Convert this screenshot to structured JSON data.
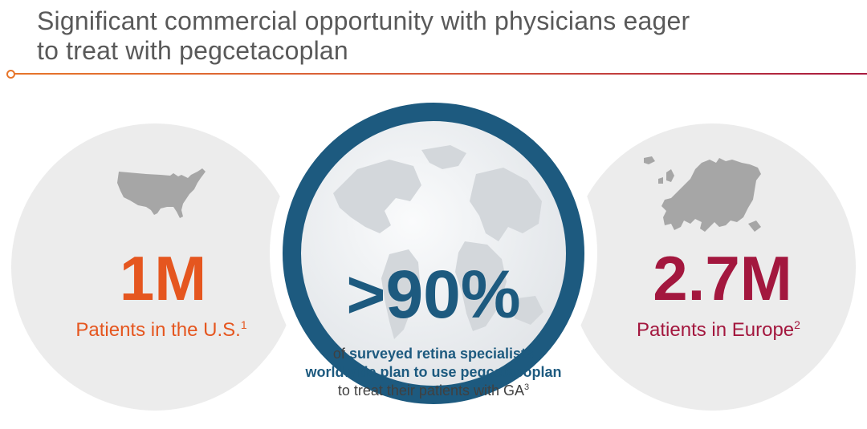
{
  "slide": {
    "title_line1": "Significant commercial opportunity with physicians eager",
    "title_line2": "to treat with pegcetacoplan"
  },
  "us": {
    "number": "1M",
    "caption": "Patients in the U.S.",
    "footnote": "1",
    "icon": "us-map-icon",
    "color": "#e5561f"
  },
  "center": {
    "number": ">90%",
    "text_of": "of ",
    "text_bold_1": "surveyed retina specialists worldwide plan to use pegcetacoplan",
    "text_rest": " to treat their patients with GA",
    "footnote": "3",
    "icon": "globe-icon",
    "color": "#1d5a7f"
  },
  "europe": {
    "number": "2.7M",
    "caption": "Patients in Europe",
    "footnote": "2",
    "icon": "europe-map-icon",
    "color": "#a3173e"
  },
  "colors": {
    "accent_orange": "#e5561f",
    "accent_crimson": "#a3173e",
    "accent_blue": "#1d5a7f",
    "title_gray": "#595959",
    "circle_gray": "#ececec"
  }
}
